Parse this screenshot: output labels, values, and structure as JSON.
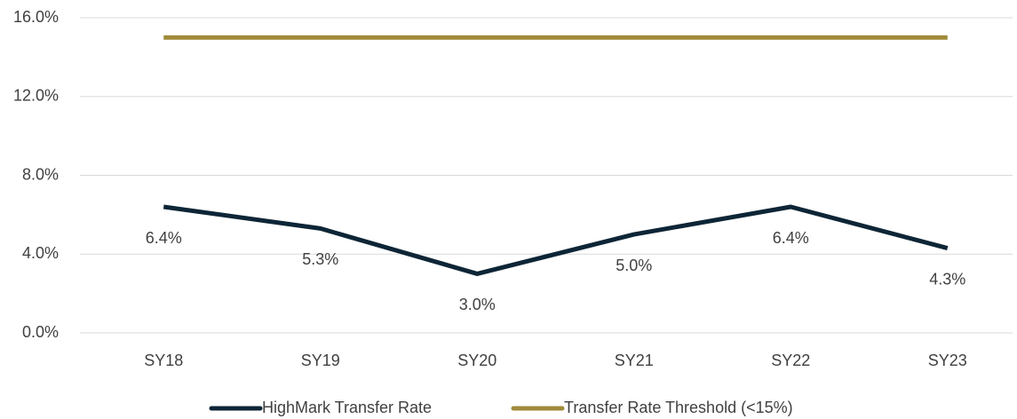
{
  "chart_data": {
    "type": "line",
    "categories": [
      "SY18",
      "SY19",
      "SY20",
      "SY21",
      "SY22",
      "SY23"
    ],
    "series": [
      {
        "name": "HighMark Transfer Rate",
        "color": "#0d2536",
        "values": [
          6.4,
          5.3,
          3.0,
          5.0,
          6.4,
          4.3
        ],
        "value_labels": [
          "6.4%",
          "5.3%",
          "3.0%",
          "5.0%",
          "6.4%",
          "4.3%"
        ]
      },
      {
        "name": "Transfer Rate Threshold (<15%)",
        "color": "#a08a3a",
        "values": [
          15,
          15,
          15,
          15,
          15,
          15
        ]
      }
    ],
    "ylim": [
      0,
      16
    ],
    "yticks": [
      {
        "value": 0,
        "label": "0.0%"
      },
      {
        "value": 4,
        "label": "4.0%"
      },
      {
        "value": 8,
        "label": "8.0%"
      },
      {
        "value": 12,
        "label": "12.0%"
      },
      {
        "value": 16,
        "label": "16.0%"
      }
    ],
    "grid": true,
    "legend": "bottom"
  }
}
